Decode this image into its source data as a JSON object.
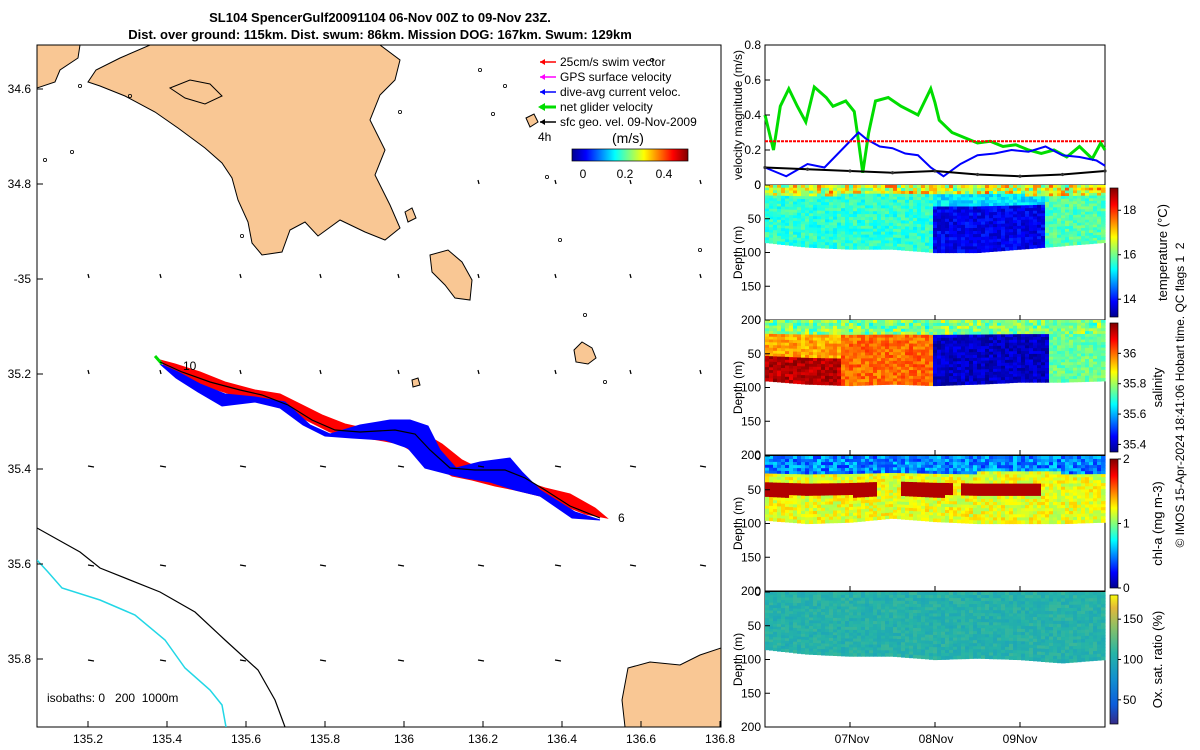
{
  "title": {
    "line1": "SL104 SpencerGulf20091104 06-Nov 00Z to 09-Nov 23Z.",
    "line2": "Dist. over ground: 115km. Dist. swum: 86km. Mission DOG: 167km. Swum: 129km"
  },
  "map": {
    "lon_ticks": [
      "135.2",
      "135.4",
      "135.6",
      "135.8",
      "136",
      "136.2",
      "136.4",
      "136.6",
      "136.8"
    ],
    "lat_ticks": [
      "34.6",
      "34.8",
      "-35",
      "35.2",
      "35.4",
      "35.6",
      "35.8"
    ],
    "track_labels": [
      "10",
      "6"
    ],
    "isobaths_label": "isobaths: 0   200  1000m",
    "legend": [
      "25cm/s swim vector",
      "GPS surface velocity",
      "dive-avg current veloc.",
      "net glider velocity",
      "sfc geo. vel. 09-Nov-2009"
    ],
    "legend_extra": "4h",
    "colorbar_title": "(m/s)",
    "colorbar_ticks": [
      "0",
      "0.2",
      "0.4"
    ],
    "colors": {
      "land": "#f9c794",
      "coast": "#000000",
      "iso200": "#000000",
      "iso1000": "#22d7e6",
      "swim": "#ff0000",
      "current": "#0000ff",
      "net": "#00cc00",
      "gps": "#ff00ff"
    }
  },
  "chart_data": [
    {
      "type": "line",
      "title": "",
      "ylabel": "velocity magnitude (m/s)",
      "ylim": [
        0,
        0.8
      ],
      "yticks": [
        "0",
        "0.2",
        "0.4",
        "0.6",
        "0.8"
      ],
      "xlim_days": [
        0,
        4
      ],
      "series": [
        {
          "name": "net glider velocity",
          "color": "#00dd00",
          "x": [
            0,
            0.1,
            0.18,
            0.28,
            0.38,
            0.48,
            0.58,
            0.72,
            0.8,
            0.95,
            1.05,
            1.1,
            1.15,
            1.22,
            1.3,
            1.45,
            1.6,
            1.8,
            1.95,
            2.0,
            2.05,
            2.2,
            2.35,
            2.5,
            2.65,
            2.8,
            2.95,
            3.1,
            3.25,
            3.4,
            3.55,
            3.7,
            3.85,
            3.95,
            4.0
          ],
          "y": [
            0.4,
            0.2,
            0.45,
            0.55,
            0.45,
            0.36,
            0.56,
            0.5,
            0.45,
            0.48,
            0.42,
            0.25,
            0.07,
            0.3,
            0.48,
            0.5,
            0.45,
            0.4,
            0.55,
            0.47,
            0.37,
            0.3,
            0.27,
            0.24,
            0.25,
            0.22,
            0.23,
            0.2,
            0.18,
            0.2,
            0.16,
            0.22,
            0.15,
            0.24,
            0.2
          ]
        },
        {
          "name": "dive-avg current veloc.",
          "color": "#0000ff",
          "x": [
            0,
            0.25,
            0.5,
            0.7,
            0.9,
            1.0,
            1.1,
            1.2,
            1.35,
            1.5,
            1.65,
            1.8,
            1.95,
            2.1,
            2.3,
            2.5,
            2.7,
            2.9,
            3.1,
            3.3,
            3.5,
            3.7,
            3.9,
            4.0
          ],
          "y": [
            0.1,
            0.05,
            0.12,
            0.1,
            0.2,
            0.25,
            0.3,
            0.26,
            0.22,
            0.21,
            0.18,
            0.17,
            0.1,
            0.05,
            0.12,
            0.17,
            0.18,
            0.2,
            0.19,
            0.22,
            0.17,
            0.16,
            0.14,
            0.11
          ]
        },
        {
          "name": "sfc geo. vel.",
          "color": "#000000",
          "x": [
            0,
            0.5,
            1,
            1.5,
            2,
            2.5,
            3,
            3.5,
            4
          ],
          "y": [
            0.1,
            0.09,
            0.08,
            0.07,
            0.08,
            0.06,
            0.05,
            0.06,
            0.08
          ]
        },
        {
          "name": "25cm/s swim vector",
          "color": "#ff0000",
          "x": [
            0,
            4
          ],
          "y": [
            0.25,
            0.25
          ]
        }
      ]
    },
    {
      "type": "heatmap",
      "ylabel": "Depth (m)",
      "colorbar_label": "temperature (°C)",
      "clim": [
        13.2,
        19
      ],
      "cticks": [
        "14",
        "16",
        "18"
      ],
      "ylim": [
        0,
        200
      ],
      "yticks": [
        "0",
        "50",
        "100",
        "150",
        "200"
      ],
      "bottom_depth": [
        [
          0,
          85
        ],
        [
          0.5,
          92
        ],
        [
          1,
          95
        ],
        [
          1.5,
          95
        ],
        [
          2,
          100
        ],
        [
          2.5,
          100
        ],
        [
          3,
          95
        ],
        [
          3.5,
          90
        ],
        [
          4,
          85
        ]
      ],
      "segments": [
        {
          "x": [
            0,
            1.96
          ],
          "value": 15.6
        },
        {
          "x": [
            1.96,
            3.3
          ],
          "value": 13.8
        },
        {
          "x": [
            3.3,
            4
          ],
          "value": 15.8
        }
      ]
    },
    {
      "type": "heatmap",
      "ylabel": "Depth (m)",
      "colorbar_label": "salinity",
      "clim": [
        35.35,
        36.2
      ],
      "cticks": [
        "35.4",
        "35.6",
        "35.8",
        "36"
      ],
      "ylim": [
        0,
        200
      ],
      "yticks": [
        "0",
        "50",
        "100",
        "150",
        "200"
      ],
      "bottom_depth": [
        [
          0,
          90
        ],
        [
          0.5,
          95
        ],
        [
          1,
          97
        ],
        [
          1.5,
          95
        ],
        [
          2,
          97
        ],
        [
          2.5,
          95
        ],
        [
          3,
          92
        ],
        [
          3.5,
          92
        ],
        [
          4,
          90
        ]
      ],
      "segments": [
        {
          "x": [
            0,
            0.9
          ],
          "value": 36.15
        },
        {
          "x": [
            0.9,
            1.96
          ],
          "value": 36.0
        },
        {
          "x": [
            1.96,
            3.35
          ],
          "value": 35.4
        },
        {
          "x": [
            3.35,
            4
          ],
          "value": 35.75
        }
      ]
    },
    {
      "type": "heatmap",
      "ylabel": "Depth (m)",
      "colorbar_label": "chl-a (mg m-3)",
      "clim": [
        0,
        2
      ],
      "cticks": [
        "0",
        "1",
        "2"
      ],
      "ylim": [
        0,
        200
      ],
      "yticks": [
        "0",
        "50",
        "100",
        "150",
        "200"
      ],
      "bottom_depth": [
        [
          0,
          95
        ],
        [
          0.5,
          100
        ],
        [
          1,
          98
        ],
        [
          1.5,
          92
        ],
        [
          2,
          97
        ],
        [
          2.5,
          100
        ],
        [
          3,
          100
        ],
        [
          3.5,
          100
        ],
        [
          4,
          98
        ]
      ],
      "surface_value": 0.3,
      "deep_value": 1.2,
      "max_layer": {
        "depth": [
          40,
          60
        ],
        "value": 1.9,
        "x": [
          0,
          1.3,
          1.6,
          2.2,
          2.3,
          3.25
        ]
      }
    },
    {
      "type": "heatmap",
      "ylabel": "Depth (m)",
      "colorbar_label": "Ox. sat. ratio (%)",
      "clim": [
        20,
        180
      ],
      "cticks": [
        "50",
        "100",
        "150"
      ],
      "ylim": [
        0,
        200
      ],
      "yticks": [
        "0",
        "50",
        "100",
        "150",
        "200"
      ],
      "bottom_depth": [
        [
          0,
          85
        ],
        [
          0.5,
          92
        ],
        [
          1,
          95
        ],
        [
          1.5,
          95
        ],
        [
          2,
          100
        ],
        [
          2.5,
          98
        ],
        [
          3,
          100
        ],
        [
          3.5,
          105
        ],
        [
          4,
          100
        ]
      ],
      "segments": [
        {
          "x": [
            0,
            4
          ],
          "value": 105
        }
      ]
    }
  ],
  "time_axis": {
    "ticks": [
      "07Nov",
      "08Nov",
      "09Nov"
    ]
  },
  "footer": "© IMOS 15-Apr-2024 18:41:06 Hobart time. QC flags 1  2"
}
